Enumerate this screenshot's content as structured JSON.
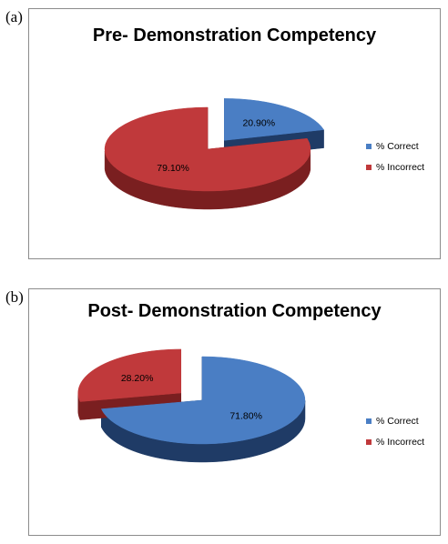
{
  "colors": {
    "blue_top": "#4a7ec4",
    "blue_side": "#1f3b66",
    "red_top": "#c0393b",
    "red_side": "#7a1f20"
  },
  "panels": [
    {
      "label": "(a)"
    },
    {
      "label": "(b)"
    }
  ],
  "chart_data": [
    {
      "type": "pie",
      "title": "Pre- Demonstration Competency",
      "categories": [
        "% Correct",
        "% Incorrect"
      ],
      "values": [
        20.9,
        79.1
      ],
      "data_labels": [
        "20.90%",
        "79.10%"
      ],
      "exploded": "% Correct",
      "legend_position": "right"
    },
    {
      "type": "pie",
      "title": "Post- Demonstration Competency",
      "categories": [
        "% Correct",
        "% Incorrect"
      ],
      "values": [
        71.8,
        28.2
      ],
      "data_labels": [
        "71.80%",
        "28.20%"
      ],
      "exploded": "% Incorrect",
      "legend_position": "right"
    }
  ]
}
